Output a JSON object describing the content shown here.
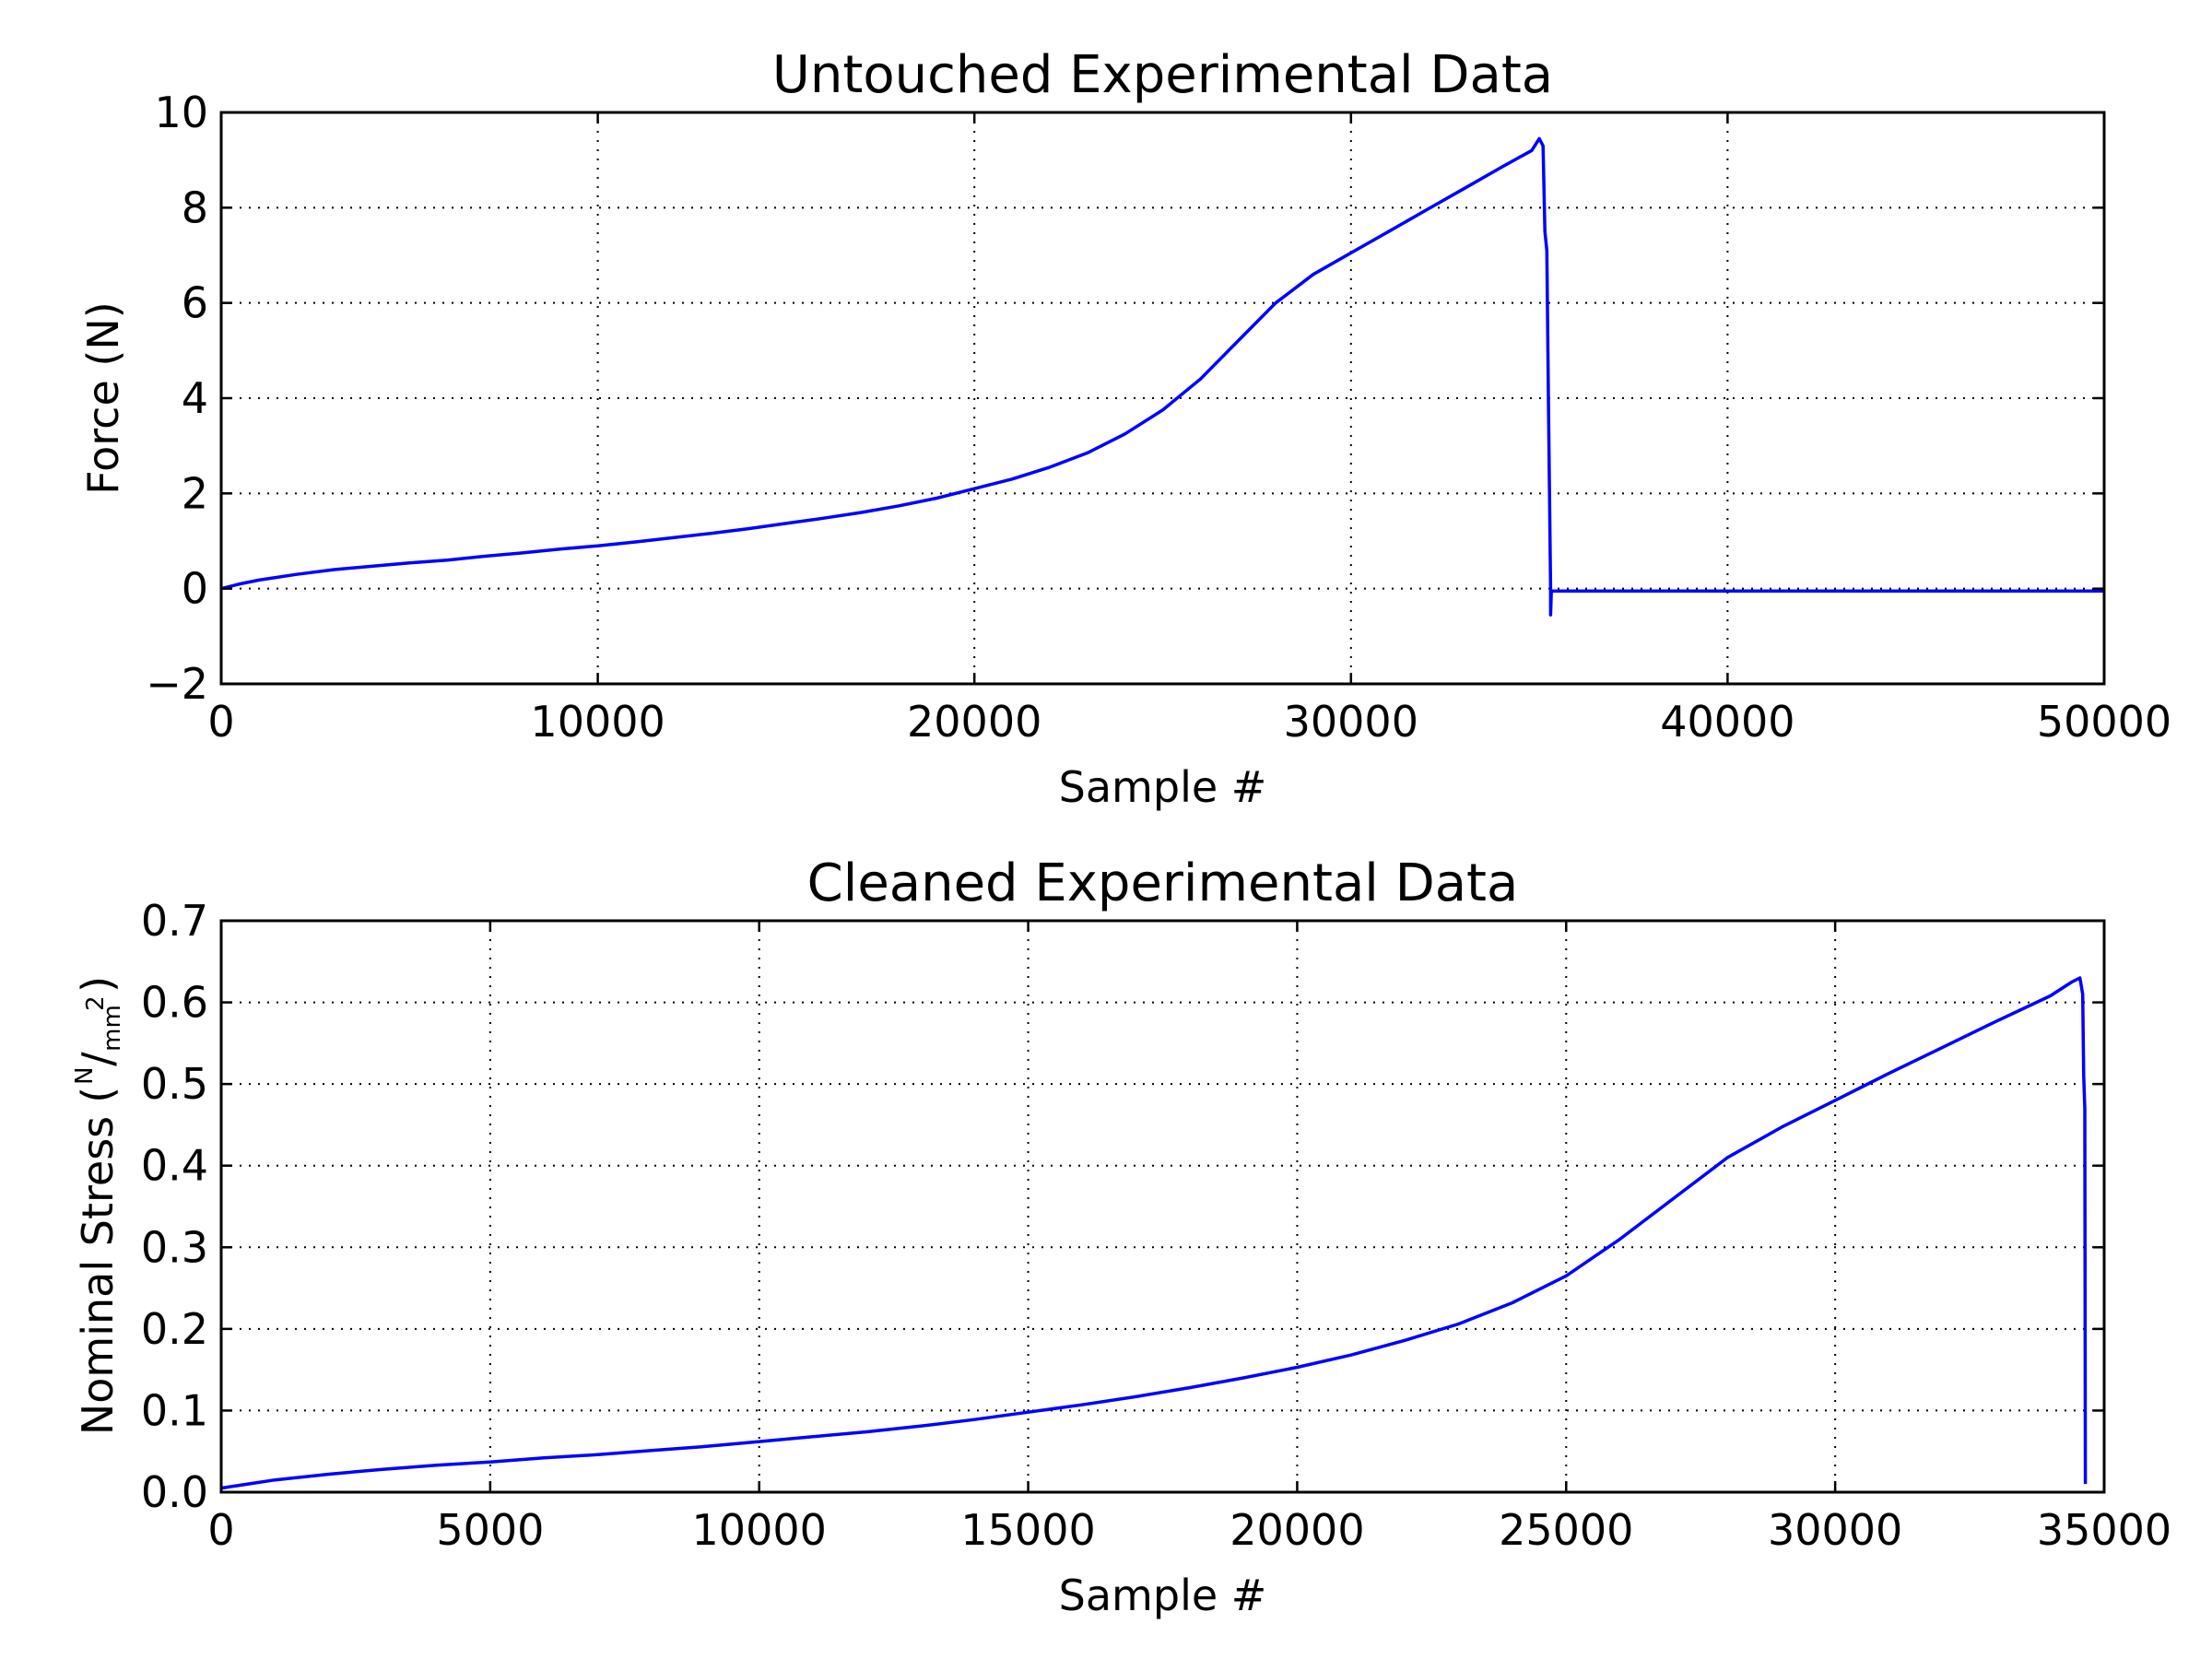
{
  "chart_data": [
    {
      "type": "line",
      "title": "Untouched Experimental Data",
      "xlabel": "Sample #",
      "ylabel": "Force (N)",
      "xlim": [
        0,
        50000
      ],
      "ylim": [
        -2,
        10
      ],
      "xticks": [
        "0",
        "10000",
        "20000",
        "30000",
        "40000",
        "50000"
      ],
      "yticks": [
        "−2",
        "0",
        "2",
        "4",
        "6",
        "8",
        "10"
      ],
      "grid": true,
      "color": "#0000ff",
      "series": [
        {
          "x": [
            0,
            500,
            1000,
            2000,
            3000,
            4000,
            5000,
            6000,
            7000,
            8000,
            9000,
            10000,
            11000,
            12000,
            13000,
            14000,
            15000,
            16000,
            17000,
            18000,
            19000,
            20000,
            21000,
            22000,
            23000,
            24000,
            25000,
            26000,
            27000,
            28000,
            29000,
            30000,
            31000,
            32000,
            33000,
            34000,
            34800,
            35000,
            35100,
            35150,
            35200,
            35250,
            35300,
            35300,
            35320,
            35400,
            40000,
            45000,
            50000
          ],
          "y": [
            0.0,
            0.1,
            0.18,
            0.3,
            0.4,
            0.47,
            0.54,
            0.6,
            0.68,
            0.75,
            0.83,
            0.9,
            0.98,
            1.07,
            1.16,
            1.26,
            1.37,
            1.48,
            1.6,
            1.74,
            1.9,
            2.1,
            2.3,
            2.55,
            2.85,
            3.25,
            3.75,
            4.4,
            5.2,
            6.0,
            6.6,
            7.05,
            7.5,
            7.95,
            8.4,
            8.85,
            9.2,
            9.45,
            9.3,
            7.5,
            7.1,
            3.5,
            0.0,
            -0.55,
            -0.05,
            -0.05,
            -0.05,
            -0.05,
            -0.05
          ]
        }
      ]
    },
    {
      "type": "line",
      "title": "Cleaned Experimental Data",
      "xlabel": "Sample #",
      "ylabel": "Nominal Stress",
      "ylabel_unit": [
        "N",
        "mm",
        "2"
      ],
      "xlim": [
        0,
        35000
      ],
      "ylim": [
        0.0,
        0.7
      ],
      "xticks": [
        "0",
        "5000",
        "10000",
        "15000",
        "20000",
        "25000",
        "30000",
        "35000"
      ],
      "yticks": [
        "0.0",
        "0.1",
        "0.2",
        "0.3",
        "0.4",
        "0.5",
        "0.6",
        "0.7"
      ],
      "grid": true,
      "color": "#0000ff",
      "series": [
        {
          "x": [
            0,
            500,
            1000,
            2000,
            3000,
            4000,
            5000,
            6000,
            7000,
            8000,
            9000,
            10000,
            11000,
            12000,
            13000,
            14000,
            15000,
            16000,
            17000,
            18000,
            19000,
            20000,
            21000,
            22000,
            23000,
            24000,
            25000,
            26000,
            27000,
            28000,
            29000,
            30000,
            31000,
            32000,
            33000,
            34000,
            34400,
            34550,
            34600,
            34620,
            34640,
            34650
          ],
          "y": [
            0.005,
            0.01,
            0.015,
            0.022,
            0.028,
            0.033,
            0.037,
            0.042,
            0.046,
            0.051,
            0.056,
            0.062,
            0.068,
            0.074,
            0.081,
            0.089,
            0.098,
            0.107,
            0.117,
            0.128,
            0.14,
            0.153,
            0.168,
            0.186,
            0.206,
            0.232,
            0.265,
            0.31,
            0.36,
            0.41,
            0.447,
            0.48,
            0.513,
            0.545,
            0.577,
            0.608,
            0.625,
            0.63,
            0.61,
            0.51,
            0.47,
            0.01
          ]
        }
      ]
    }
  ]
}
